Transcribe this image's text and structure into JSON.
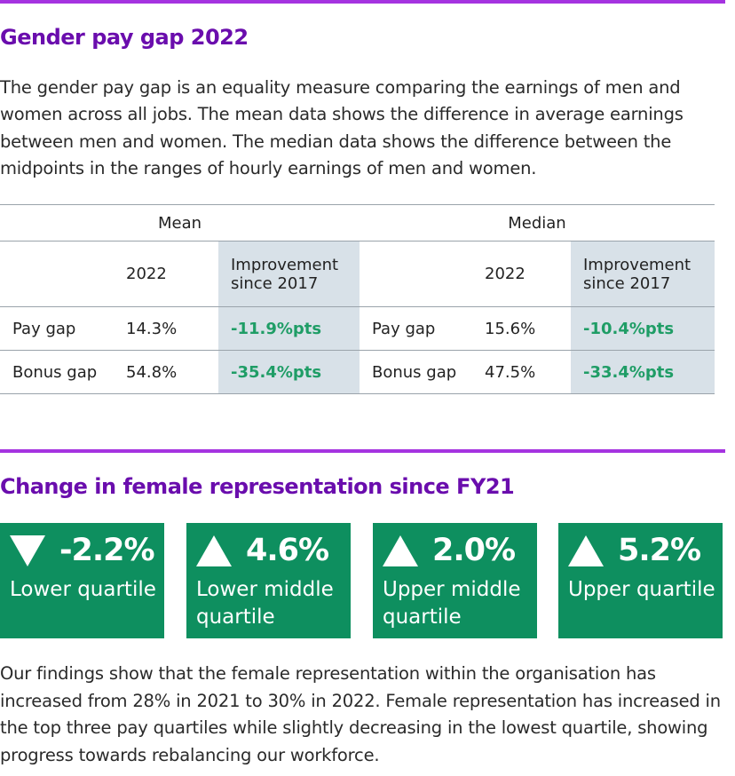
{
  "section1": {
    "title": "Gender pay gap 2022",
    "intro": "The gender pay gap is an equality measure comparing the earnings of men and women across all jobs. The mean data shows the difference in average earnings between men and women. The median data shows the difference between the midpoints in the ranges of hourly earnings of men and women."
  },
  "table": {
    "groups": [
      "Mean",
      "Median"
    ],
    "col_year": "2022",
    "col_improvement": "Improvement since 2017",
    "rows": [
      {
        "label": "Pay gap",
        "mean_2022": "14.3%",
        "mean_imp": "-11.9%pts",
        "median_label": "Pay gap",
        "median_2022": "15.6%",
        "median_imp": "-10.4%pts"
      },
      {
        "label": "Bonus gap",
        "mean_2022": "54.8%",
        "mean_imp": "-35.4%pts",
        "median_label": "Bonus gap",
        "median_2022": "47.5%",
        "median_imp": "-33.4%pts"
      }
    ]
  },
  "section2": {
    "title": "Change in female representation since FY21",
    "tiles": [
      {
        "value": "-2.2%",
        "direction": "down",
        "label": "Lower quartile"
      },
      {
        "value": "4.6%",
        "direction": "up",
        "label": "Lower middle quartile"
      },
      {
        "value": "2.0%",
        "direction": "up",
        "label": "Upper middle quartile"
      },
      {
        "value": "5.2%",
        "direction": "up",
        "label": "Upper quartile"
      }
    ],
    "findings": "Our findings show that the female representation within the organisation has increased from 28% in 2021 to 30% in 2022.  Female representation has increased in the top three pay quartiles while slightly decreasing in the lowest quartile, showing progress towards rebalancing our workforce."
  },
  "colors": {
    "accent_rule": "#a533e0",
    "heading": "#6a0dad",
    "tile_green": "#0e8f5f",
    "improvement_green": "#1f9d66",
    "improvement_bg": "#d8e1e8"
  }
}
